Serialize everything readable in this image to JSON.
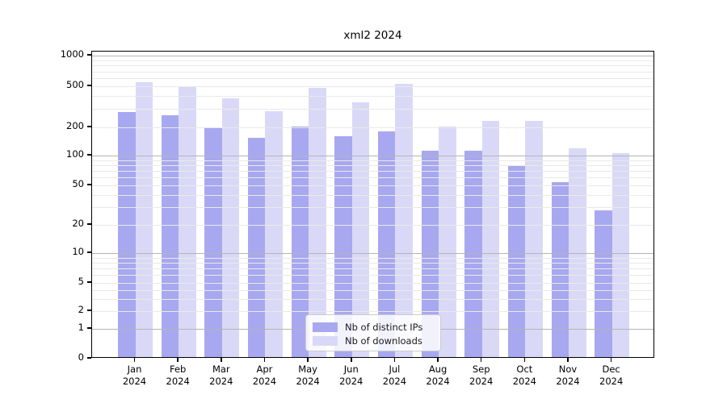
{
  "chart_data": {
    "type": "bar",
    "title": "xml2 2024",
    "categories": [
      "Jan 2024",
      "Feb 2024",
      "Mar 2024",
      "Apr 2024",
      "May 2024",
      "Jun 2024",
      "Jul 2024",
      "Aug 2024",
      "Sep 2024",
      "Oct 2024",
      "Nov 2024",
      "Dec 2024"
    ],
    "month_labels": [
      "Jan",
      "Feb",
      "Mar",
      "Apr",
      "May",
      "Jun",
      "Jul",
      "Aug",
      "Sep",
      "Oct",
      "Nov",
      "Dec"
    ],
    "year_label": "2024",
    "series": [
      {
        "name": "Nb of distinct IPs",
        "color": "#a8a8f0",
        "values": [
          280,
          260,
          195,
          155,
          205,
          160,
          180,
          113,
          113,
          78,
          54,
          28
        ]
      },
      {
        "name": "Nb of downloads",
        "color": "#d9d9f7",
        "values": [
          550,
          495,
          380,
          285,
          480,
          350,
          530,
          205,
          230,
          230,
          120,
          106
        ]
      }
    ],
    "y_scale": "symlog",
    "y_ticks": [
      0,
      1,
      2,
      5,
      10,
      20,
      50,
      100,
      200,
      500,
      1000
    ],
    "ylim": [
      0,
      1100
    ],
    "xlabel": "",
    "ylabel": "",
    "grid": true,
    "gridlines_over_bars": true,
    "legend_position": "bottom-center"
  },
  "legend": {
    "items": [
      {
        "label": "Nb of distinct IPs",
        "color": "#a8a8f0"
      },
      {
        "label": "Nb of downloads",
        "color": "#d9d9f7"
      }
    ]
  },
  "colors": {
    "background": "#ffffff",
    "axis_frame": "#000000",
    "major_grid": "#b4b4b4",
    "minor_grid": "#e9e9e9",
    "series_1": "#a8a8f0",
    "series_2": "#d9d9f7"
  }
}
